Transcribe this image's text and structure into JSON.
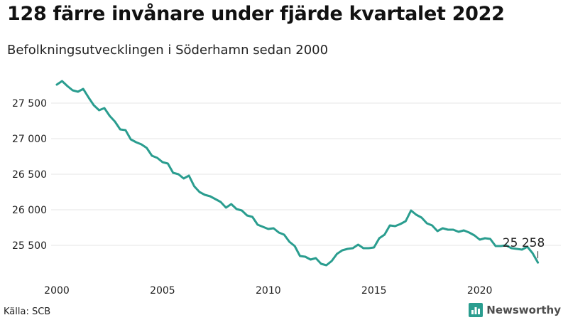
{
  "title": "128 färre invånare under fjärde kvartalet 2022",
  "subtitle": "Befolkningsutvecklingen i Söderhamn sedan 2000",
  "source": "Källa: SCB",
  "brand": "Newsworthy",
  "colors": {
    "line": "#2a9d8f",
    "brand_icon": "#2a9d8f",
    "grid": "#e6e6e6",
    "text": "#222222"
  },
  "chart_data": {
    "type": "line",
    "title": "128 färre invånare under fjärde kvartalet 2022",
    "xlabel": "",
    "ylabel": "",
    "xlim": [
      2000,
      2023
    ],
    "ylim": [
      25100,
      27950
    ],
    "x_ticks": [
      2000,
      2005,
      2010,
      2015,
      2020
    ],
    "x_tick_labels": [
      "2000",
      "2005",
      "2010",
      "2015",
      "2020"
    ],
    "y_ticks": [
      25500,
      26000,
      26500,
      27000,
      27500
    ],
    "y_tick_labels": [
      "25 500",
      "26 000",
      "26 500",
      "27 000",
      "27 500"
    ],
    "grid": "horizontal",
    "end_label": "25 258",
    "series": [
      {
        "x": [
          2000.0,
          2000.25,
          2000.5,
          2000.75,
          2001.0,
          2001.25,
          2001.5,
          2001.75,
          2002.0,
          2002.25,
          2002.5,
          2002.75,
          2003.0,
          2003.25,
          2003.5,
          2003.75,
          2004.0,
          2004.25,
          2004.5,
          2004.75,
          2005.0,
          2005.25,
          2005.5,
          2005.75,
          2006.0,
          2006.25,
          2006.5,
          2006.75,
          2007.0,
          2007.25,
          2007.5,
          2007.75,
          2008.0,
          2008.25,
          2008.5,
          2008.75,
          2009.0,
          2009.25,
          2009.5,
          2009.75,
          2010.0,
          2010.25,
          2010.5,
          2010.75,
          2011.0,
          2011.25,
          2011.5,
          2011.75,
          2012.0,
          2012.25,
          2012.5,
          2012.75,
          2013.0,
          2013.25,
          2013.5,
          2013.75,
          2014.0,
          2014.25,
          2014.5,
          2014.75,
          2015.0,
          2015.25,
          2015.5,
          2015.75,
          2016.0,
          2016.25,
          2016.5,
          2016.75,
          2017.0,
          2017.25,
          2017.5,
          2017.75,
          2018.0,
          2018.25,
          2018.5,
          2018.75,
          2019.0,
          2019.25,
          2019.5,
          2019.75,
          2020.0,
          2020.25,
          2020.5,
          2020.75,
          2021.0,
          2021.25,
          2021.5,
          2021.75,
          2022.0,
          2022.25,
          2022.5,
          2022.75
        ],
        "values": [
          27760,
          27810,
          27740,
          27680,
          27660,
          27700,
          27580,
          27470,
          27400,
          27430,
          27320,
          27240,
          27130,
          27120,
          26990,
          26950,
          26920,
          26870,
          26760,
          26730,
          26670,
          26650,
          26520,
          26500,
          26440,
          26480,
          26330,
          26250,
          26210,
          26190,
          26150,
          26110,
          26030,
          26080,
          26010,
          25990,
          25920,
          25900,
          25790,
          25760,
          25730,
          25740,
          25680,
          25650,
          25550,
          25490,
          25350,
          25340,
          25300,
          25320,
          25240,
          25220,
          25280,
          25380,
          25430,
          25450,
          25460,
          25510,
          25460,
          25460,
          25470,
          25600,
          25650,
          25780,
          25770,
          25800,
          25840,
          25990,
          25930,
          25890,
          25810,
          25780,
          25700,
          25740,
          25720,
          25720,
          25690,
          25710,
          25680,
          25640,
          25580,
          25600,
          25590,
          25490,
          25490,
          25500,
          25460,
          25450,
          25440,
          25480,
          25390,
          25258
        ]
      }
    ]
  }
}
